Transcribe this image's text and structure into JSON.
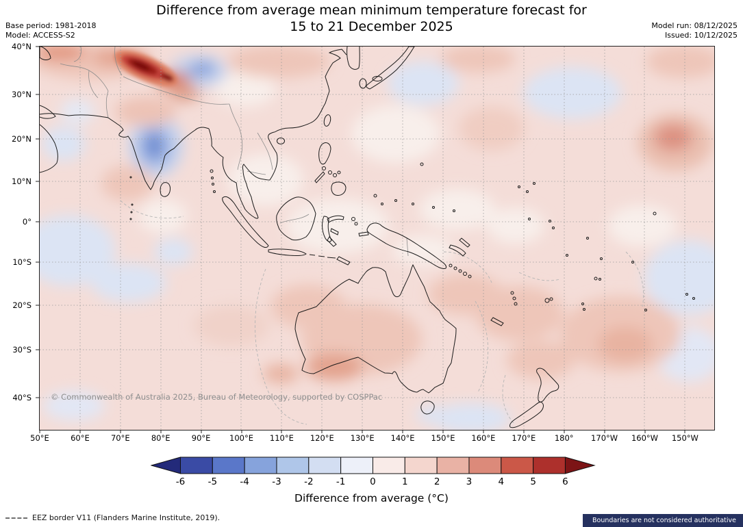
{
  "header": {
    "title_line1": "Difference from average mean minimum temperature forecast for",
    "title_line2": "15 to 21 December 2025",
    "base_period": "Base period: 1981-2018",
    "model": "Model: ACCESS-S2",
    "model_run": "Model run: 08/12/2025",
    "issued": "Issued: 10/12/2025"
  },
  "map": {
    "watermark": "© Commonwealth of Australia 2025, Bureau of Meteorology, supported by COSPPac"
  },
  "axes": {
    "y_ticks": [
      "40°N",
      "30°N",
      "20°N",
      "10°N",
      "0°",
      "10°S",
      "20°S",
      "30°S",
      "40°S"
    ],
    "x_ticks": [
      "50°E",
      "60°E",
      "70°E",
      "80°E",
      "90°E",
      "100°E",
      "110°E",
      "120°E",
      "130°E",
      "140°E",
      "150°E",
      "160°E",
      "170°E",
      "180°",
      "170°W",
      "160°W",
      "150°W"
    ]
  },
  "colorbar": {
    "title": "Difference from average (°C)",
    "tick_labels": [
      "-6",
      "-5",
      "-4",
      "-3",
      "-2",
      "-1",
      "0",
      "1",
      "2",
      "3",
      "4",
      "5",
      "6"
    ],
    "segment_colors": [
      "#3a4ba5",
      "#5a77c9",
      "#86a3dc",
      "#afc6e9",
      "#d3def2",
      "#edf0f9",
      "#f9ebe8",
      "#f4d6ce",
      "#e9b2a5",
      "#dc8a7a",
      "#cb5848",
      "#ad302c"
    ],
    "arrow_left_color": "#232a7a",
    "arrow_right_color": "#7c1416"
  },
  "footer": {
    "eez_label": "EEZ border V11 (Flanders Marine Institute, 2019).",
    "disclaimer": "Boundaries are not considered authoritative"
  },
  "chart_data": {
    "type": "heatmap",
    "title": "Difference from average mean minimum temperature forecast for 15 to 21 December 2025",
    "base_period": "1981-2018",
    "model": "ACCESS-S2",
    "model_run": "08/12/2025",
    "issued": "10/12/2025",
    "x_axis": {
      "label": "longitude",
      "ticks": [
        "50°E",
        "60°E",
        "70°E",
        "80°E",
        "90°E",
        "100°E",
        "110°E",
        "120°E",
        "130°E",
        "140°E",
        "150°E",
        "160°E",
        "170°E",
        "180°",
        "170°W",
        "160°W",
        "150°W"
      ]
    },
    "y_axis": {
      "label": "latitude",
      "ticks": [
        "40°N",
        "30°N",
        "20°N",
        "10°N",
        "0°",
        "10°S",
        "20°S",
        "30°S",
        "40°S"
      ]
    },
    "colorbar": {
      "label": "Difference from average (°C)",
      "min": -6,
      "max": 6,
      "step": 1,
      "extend": "both",
      "scheme": "blue-white-red diverging"
    },
    "field_summary": "Most of the Asia-Pacific domain shows weak warm anomalies of about +0.5 to +1 °C (pale pink).",
    "notable_features": [
      {
        "region": "Himalayas / northern India-Pakistan (70-82°E, 32-37°N)",
        "anomaly_c": "+4 to more than +6 (strong dark-red maximum)"
      },
      {
        "region": "Central India (75-80°E, 14-20°N)",
        "anomaly_c": "-2 to -3 (blue minimum)"
      },
      {
        "region": "Tibetan Plateau near 88-92°E, 33-36°N",
        "anomaly_c": "-1 to -3 (small blue spots)"
      },
      {
        "region": "Western Indian Ocean (52-65°E, 0-15°S)",
        "anomaly_c": "0 to -1"
      },
      {
        "region": "Northwest Pacific (138-152°E, 27-35°N)",
        "anomaly_c": "0 to -1"
      },
      {
        "region": "North-central Pacific (175°E-165°W, 24-33°N)",
        "anomaly_c": "0 to -1"
      },
      {
        "region": "Southeast Pacific near 150°W, 5-15°S",
        "anomaly_c": "0 to -1"
      },
      {
        "region": "Interior Australia",
        "anomaly_c": "+1 to +2"
      },
      {
        "region": "Subtropical South Pacific (160°E-150°W, 20-35°S)",
        "anomaly_c": "+1 to +2"
      },
      {
        "region": "Central Pacific near 165-155°W, 12-20°N",
        "anomaly_c": "+2 to +3"
      }
    ]
  }
}
